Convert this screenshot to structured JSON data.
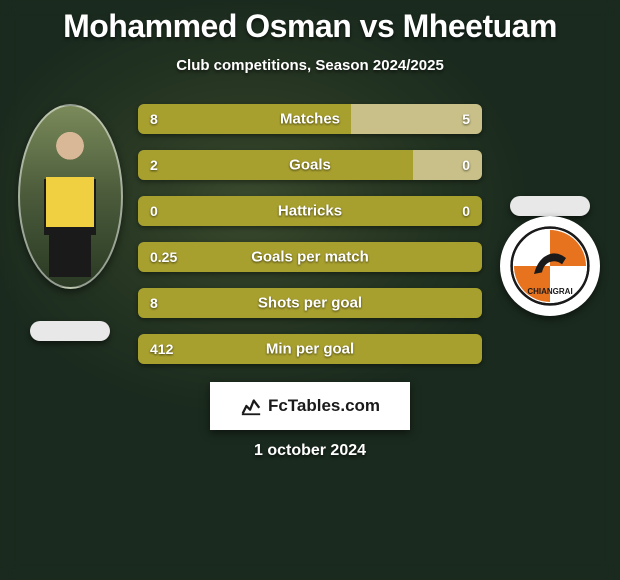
{
  "title": "Mohammed Osman vs Mheetuam",
  "title_fontsize": 32,
  "subtitle": "Club competitions, Season 2024/2025",
  "subtitle_fontsize": 15,
  "date": "1 october 2024",
  "date_fontsize": 16,
  "badge_text": "FcTables.com",
  "badge_fontsize": 17,
  "colors": {
    "accent_p1": "#a8a02e",
    "accent_p2": "#c8c088",
    "pill_p1": "#e8e8e8",
    "pill_p2": "#e8e8e8",
    "text": "#ffffff",
    "logo_orange": "#e8731f",
    "logo_black": "#1a1a1a"
  },
  "bar_label_fontsize": 15,
  "bar_value_fontsize": 14,
  "stats": [
    {
      "label": "Matches",
      "p1_value": "8",
      "p2_value": "5",
      "p1_width": 0.62,
      "p2_width": 0.38
    },
    {
      "label": "Goals",
      "p1_value": "2",
      "p2_value": "0",
      "p1_width": 0.8,
      "p2_width": 0.2
    },
    {
      "label": "Hattricks",
      "p1_value": "0",
      "p2_value": "0",
      "p1_width": 1.0,
      "p2_width": 0.0
    },
    {
      "label": "Goals per match",
      "p1_value": "0.25",
      "p2_value": "",
      "p1_width": 1.0,
      "p2_width": 0.0
    },
    {
      "label": "Shots per goal",
      "p1_value": "8",
      "p2_value": "",
      "p1_width": 1.0,
      "p2_width": 0.0
    },
    {
      "label": "Min per goal",
      "p1_value": "412",
      "p2_value": "",
      "p1_width": 1.0,
      "p2_width": 0.0
    }
  ]
}
